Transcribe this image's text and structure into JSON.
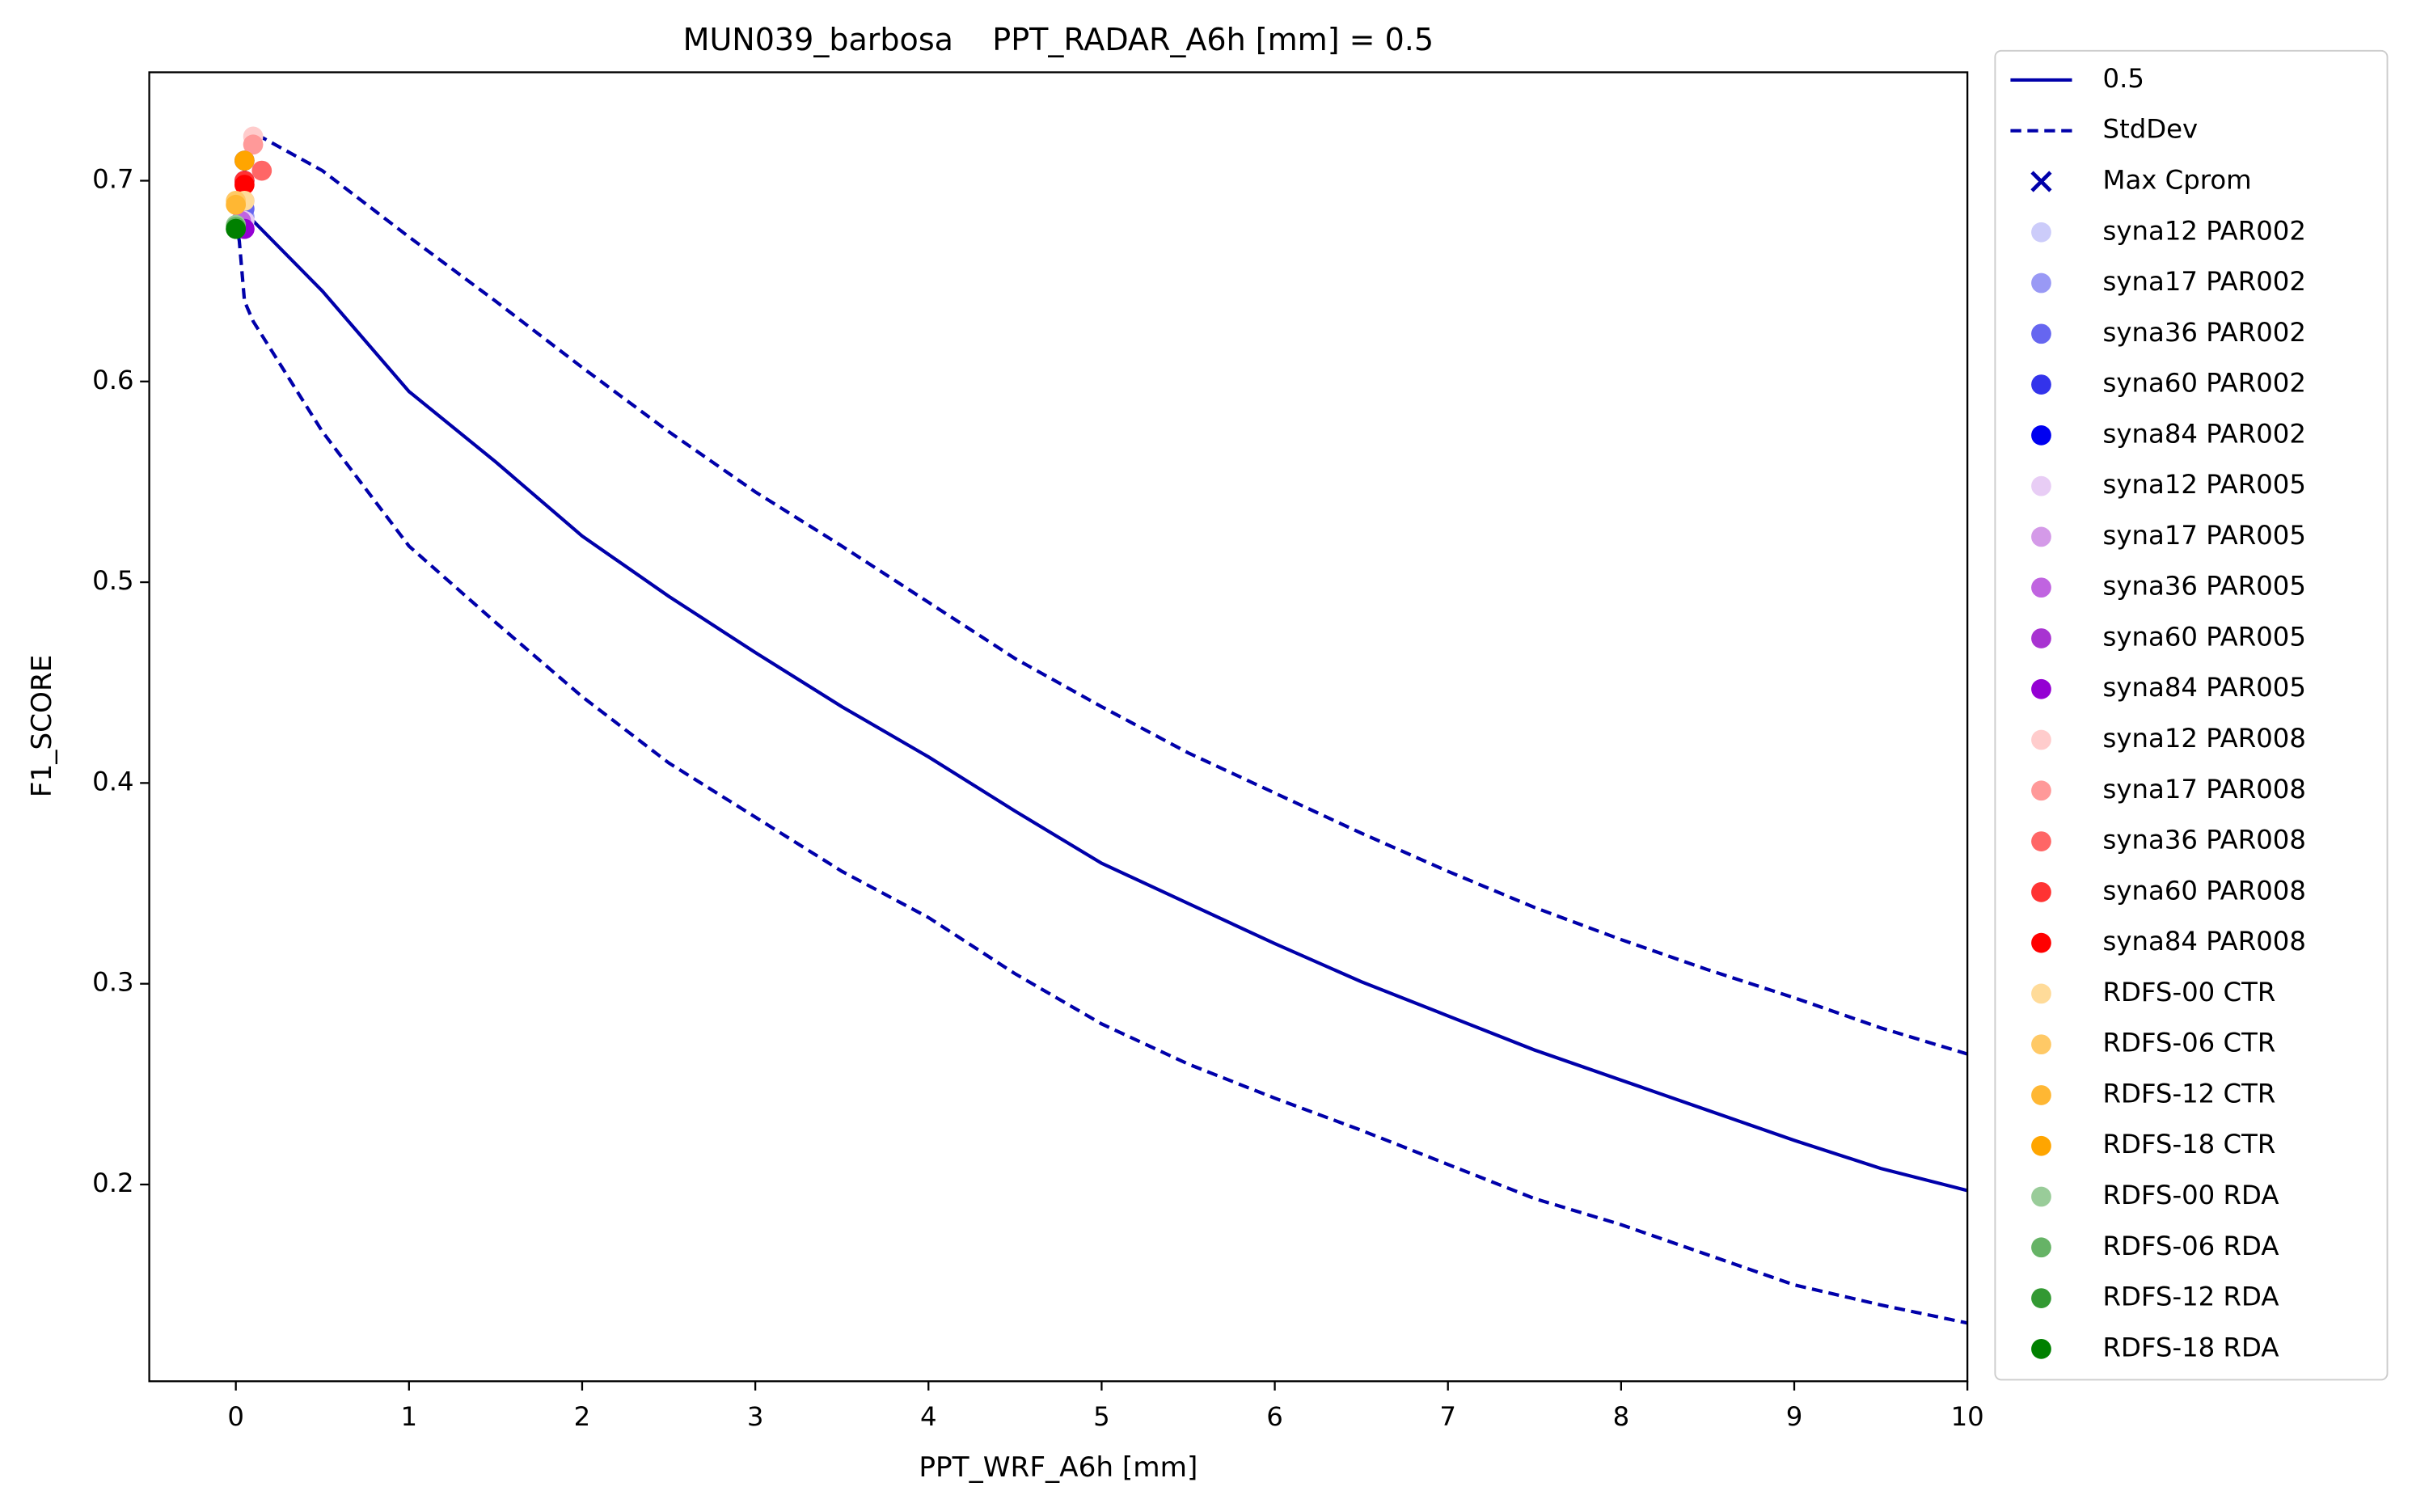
{
  "chart_data": {
    "type": "line",
    "title": "MUN039_barbosa    PPT_RADAR_A6h [mm] = 0.5",
    "xlabel": "PPT_WRF_A6h [mm]",
    "ylabel": "F1_SCORE",
    "xlim": [
      -0.5,
      10
    ],
    "ylim": [
      0.102,
      0.754
    ],
    "xticks": [
      0,
      1,
      2,
      3,
      4,
      5,
      6,
      7,
      8,
      9,
      10
    ],
    "yticks": [
      0.2,
      0.3,
      0.4,
      0.5,
      0.6,
      0.7
    ],
    "legend": "outside-right",
    "series": [
      {
        "name": "0.5",
        "kind": "line",
        "color": "#0000aa",
        "dashed": false,
        "x": [
          0,
          0.1,
          0.5,
          1,
          1.5,
          2,
          2.5,
          3,
          3.5,
          4,
          4.5,
          5,
          5.5,
          6,
          6.5,
          7,
          7.5,
          8,
          8.5,
          9,
          9.5,
          10
        ],
        "values": [
          0.68,
          0.68,
          0.645,
          0.595,
          0.56,
          0.523,
          0.493,
          0.465,
          0.438,
          0.413,
          0.386,
          0.36,
          0.34,
          0.32,
          0.301,
          0.284,
          0.267,
          0.252,
          0.237,
          0.222,
          0.208,
          0.197
        ]
      },
      {
        "name": "StdDev",
        "kind": "line",
        "color": "#0000aa",
        "dashed": true,
        "x": [
          0,
          0.1,
          0.5,
          1,
          1.5,
          2,
          2.5,
          3,
          3.5,
          4,
          4.5,
          5,
          5.5,
          6,
          6.5,
          7,
          7.5,
          8,
          8.5,
          9,
          9.5,
          10,
          null,
          0,
          0.02,
          0.05,
          0.1,
          0.5,
          1,
          1.5,
          2,
          2.5,
          3,
          3.5,
          4,
          4.5,
          5,
          5.5,
          6,
          6.5,
          7,
          7.5,
          8,
          8.5,
          9,
          9.5,
          10
        ],
        "values": [
          0.685,
          0.724,
          0.705,
          0.672,
          0.64,
          0.607,
          0.575,
          0.545,
          0.518,
          0.49,
          0.462,
          0.438,
          0.415,
          0.395,
          0.375,
          0.356,
          0.338,
          0.322,
          0.307,
          0.293,
          0.278,
          0.265,
          null,
          0.68,
          0.67,
          0.64,
          0.63,
          0.575,
          0.518,
          0.48,
          0.443,
          0.41,
          0.383,
          0.356,
          0.333,
          0.305,
          0.28,
          0.26,
          0.243,
          0.227,
          0.21,
          0.193,
          0.18,
          0.165,
          0.15,
          0.14,
          0.131
        ]
      },
      {
        "name": "Max Cprom",
        "kind": "scatter",
        "marker": "x",
        "color": "#0000aa",
        "x": [],
        "values": []
      },
      {
        "name": "syna12 PAR002",
        "kind": "scatter",
        "color": "#ccccfa",
        "x": [
          0.05
        ],
        "values": [
          0.68
        ]
      },
      {
        "name": "syna17 PAR002",
        "kind": "scatter",
        "color": "#9999f5",
        "x": [
          0.05
        ],
        "values": [
          0.682
        ]
      },
      {
        "name": "syna36 PAR002",
        "kind": "scatter",
        "color": "#6666f0",
        "x": [
          0.05
        ],
        "values": [
          0.686
        ]
      },
      {
        "name": "syna60 PAR002",
        "kind": "scatter",
        "color": "#3333eb",
        "x": [
          0.05
        ],
        "values": [
          0.7
        ]
      },
      {
        "name": "syna84 PAR002",
        "kind": "scatter",
        "color": "#0000f0",
        "x": [
          0.05
        ],
        "values": [
          0.71
        ]
      },
      {
        "name": "syna12 PAR005",
        "kind": "scatter",
        "color": "#e8cdf5",
        "x": [
          0.05
        ],
        "values": [
          0.68
        ]
      },
      {
        "name": "syna17 PAR005",
        "kind": "scatter",
        "color": "#d49ae8",
        "x": [
          0.05
        ],
        "values": [
          0.69
        ]
      },
      {
        "name": "syna36 PAR005",
        "kind": "scatter",
        "color": "#c064e0",
        "x": [
          0.03
        ],
        "values": [
          0.68
        ]
      },
      {
        "name": "syna60 PAR005",
        "kind": "scatter",
        "color": "#a833d1",
        "x": [
          0.05
        ],
        "values": [
          0.676
        ]
      },
      {
        "name": "syna84 PAR005",
        "kind": "scatter",
        "color": "#9400d3",
        "x": [
          0.05
        ],
        "values": [
          0.676
        ]
      },
      {
        "name": "syna12 PAR008",
        "kind": "scatter",
        "color": "#ffcccc",
        "x": [
          0.1
        ],
        "values": [
          0.722
        ]
      },
      {
        "name": "syna17 PAR008",
        "kind": "scatter",
        "color": "#ff9999",
        "x": [
          0.1
        ],
        "values": [
          0.718
        ]
      },
      {
        "name": "syna36 PAR008",
        "kind": "scatter",
        "color": "#ff6666",
        "x": [
          0.15
        ],
        "values": [
          0.705
        ]
      },
      {
        "name": "syna60 PAR008",
        "kind": "scatter",
        "color": "#ff3333",
        "x": [
          0.05
        ],
        "values": [
          0.7
        ]
      },
      {
        "name": "syna84 PAR008",
        "kind": "scatter",
        "color": "#ff0000",
        "x": [
          0.05
        ],
        "values": [
          0.698
        ]
      },
      {
        "name": "RDFS-00 CTR",
        "kind": "scatter",
        "color": "#ffdb99",
        "x": [
          0.05
        ],
        "values": [
          0.69
        ]
      },
      {
        "name": "RDFS-06 CTR",
        "kind": "scatter",
        "color": "#ffc966",
        "x": [
          0.0
        ],
        "values": [
          0.69
        ]
      },
      {
        "name": "RDFS-12 CTR",
        "kind": "scatter",
        "color": "#ffb733",
        "x": [
          0.0
        ],
        "values": [
          0.688
        ]
      },
      {
        "name": "RDFS-18 CTR",
        "kind": "scatter",
        "color": "#ffa500",
        "x": [
          0.05
        ],
        "values": [
          0.71
        ]
      },
      {
        "name": "RDFS-00 RDA",
        "kind": "scatter",
        "color": "#99cc99",
        "x": [
          0.0
        ],
        "values": [
          0.678
        ]
      },
      {
        "name": "RDFS-06 RDA",
        "kind": "scatter",
        "color": "#66b366",
        "x": [
          0.0
        ],
        "values": [
          0.677
        ]
      },
      {
        "name": "RDFS-12 RDA",
        "kind": "scatter",
        "color": "#339933",
        "x": [
          0.0
        ],
        "values": [
          0.676
        ]
      },
      {
        "name": "RDFS-18 RDA",
        "kind": "scatter",
        "color": "#008000",
        "x": [
          0.0
        ],
        "values": [
          0.676
        ]
      }
    ]
  }
}
